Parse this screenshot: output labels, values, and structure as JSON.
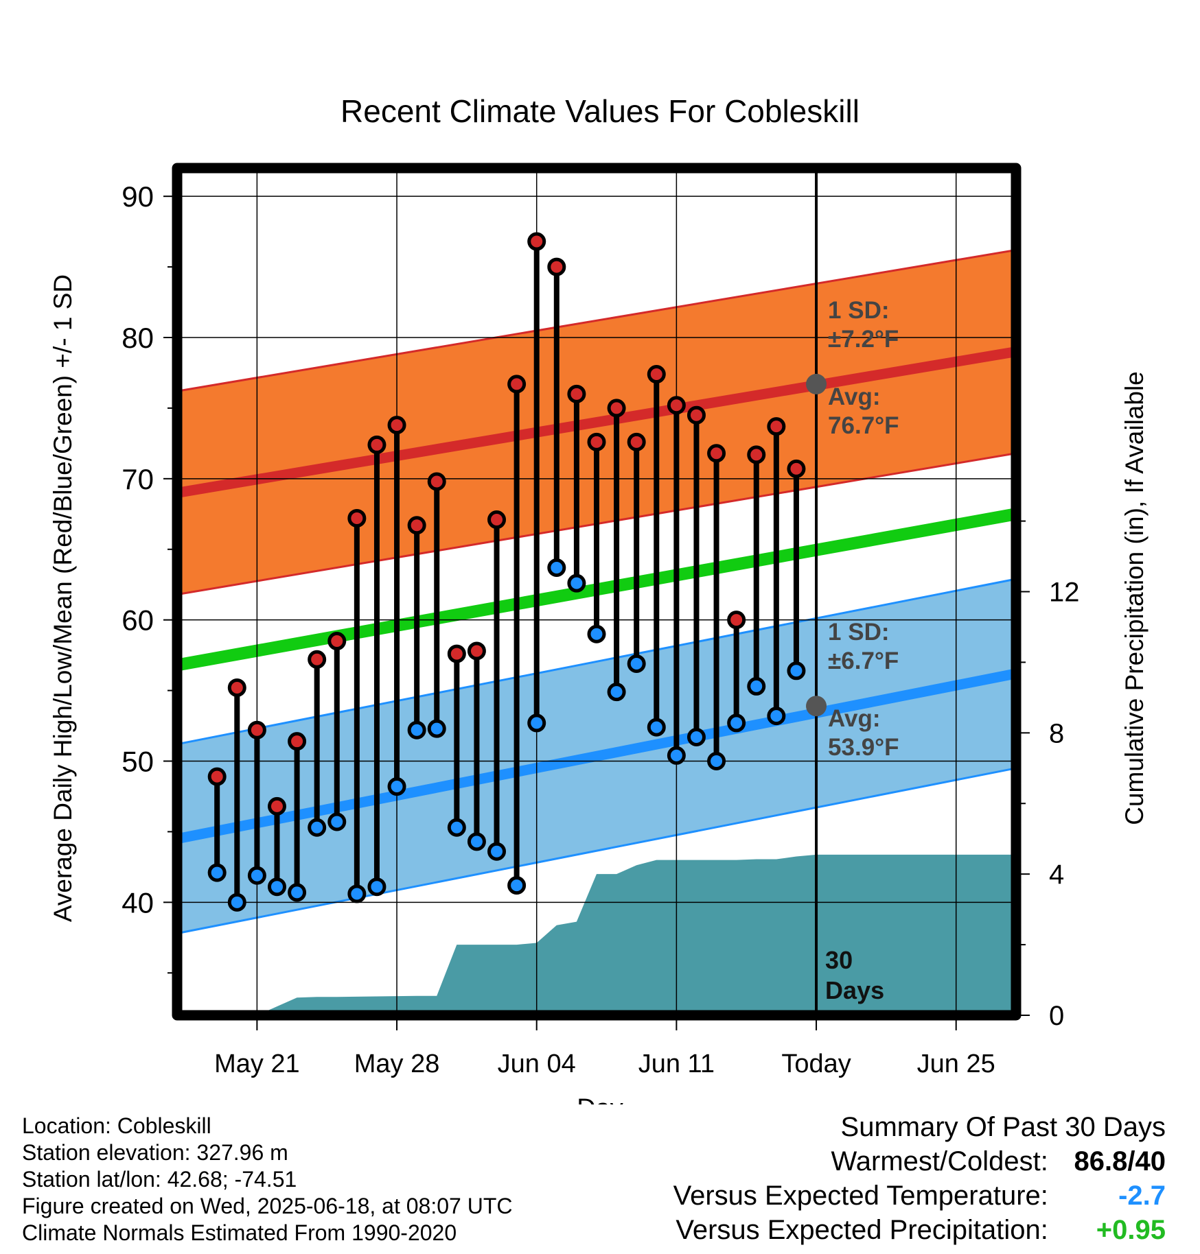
{
  "chart_data": {
    "type": "line",
    "title": "Recent Climate Values For Cobleskill",
    "xlabel": "Day",
    "ylabel": "Average Daily High/Low/Mean (Red/Blue/Green) +/- 1 SD",
    "y2label": "Cumulative Precipitation (in), If Available",
    "xlim": [
      "2025-05-17",
      "2025-06-28"
    ],
    "ylim": [
      32,
      92
    ],
    "y2lim": [
      0,
      24
    ],
    "yticks": [
      40,
      50,
      60,
      70,
      80,
      90
    ],
    "y2ticks": [
      0,
      4,
      8,
      12
    ],
    "xticks": [
      {
        "date": "2025-05-21",
        "label": "May 21"
      },
      {
        "date": "2025-05-28",
        "label": "May 28"
      },
      {
        "date": "2025-06-04",
        "label": "Jun 04"
      },
      {
        "date": "2025-06-11",
        "label": "Jun 11"
      },
      {
        "date": "2025-06-18",
        "label": "Today"
      },
      {
        "date": "2025-06-25",
        "label": "Jun 25"
      }
    ],
    "grid": true,
    "today": "2025-06-18",
    "period_label": [
      "30",
      "Days"
    ],
    "daily": {
      "dates": [
        "2025-05-19",
        "2025-05-20",
        "2025-05-21",
        "2025-05-22",
        "2025-05-23",
        "2025-05-24",
        "2025-05-25",
        "2025-05-26",
        "2025-05-27",
        "2025-05-28",
        "2025-05-29",
        "2025-05-30",
        "2025-05-31",
        "2025-06-01",
        "2025-06-02",
        "2025-06-03",
        "2025-06-04",
        "2025-06-05",
        "2025-06-06",
        "2025-06-07",
        "2025-06-08",
        "2025-06-09",
        "2025-06-10",
        "2025-06-11",
        "2025-06-12",
        "2025-06-13",
        "2025-06-14",
        "2025-06-15",
        "2025-06-16",
        "2025-06-17"
      ],
      "high": [
        48.9,
        55.2,
        52.2,
        46.8,
        51.4,
        57.2,
        58.5,
        67.2,
        72.4,
        73.8,
        66.7,
        69.8,
        57.6,
        57.8,
        67.1,
        76.7,
        86.8,
        85.0,
        76.0,
        72.6,
        75.0,
        72.6,
        77.4,
        75.2,
        74.5,
        71.8,
        60.0,
        71.7,
        73.7,
        70.7
      ],
      "low": [
        42.1,
        40.0,
        41.9,
        41.1,
        40.7,
        45.3,
        45.7,
        40.6,
        41.1,
        48.2,
        52.2,
        52.3,
        45.3,
        44.3,
        43.6,
        41.2,
        52.7,
        63.7,
        62.6,
        59.0,
        54.9,
        56.9,
        52.4,
        50.4,
        51.7,
        50.0,
        52.7,
        55.3,
        53.2,
        56.4
      ],
      "high_color": "#d42a2a",
      "low_color": "#1e90ff"
    },
    "normals": {
      "dates": [
        "2025-05-17",
        "2025-06-28"
      ],
      "high_avg": [
        69.0,
        79.0
      ],
      "high_sd": 7.2,
      "low_avg": [
        44.5,
        56.2
      ],
      "low_sd": 6.7,
      "mean_avg": [
        56.8,
        67.5
      ]
    },
    "precipitation": {
      "dates": [
        "2025-05-18",
        "2025-05-19",
        "2025-05-20",
        "2025-05-21",
        "2025-05-22",
        "2025-05-23",
        "2025-05-24",
        "2025-05-25",
        "2025-05-29",
        "2025-05-30",
        "2025-05-31",
        "2025-06-01",
        "2025-06-02",
        "2025-06-03",
        "2025-06-04",
        "2025-06-05",
        "2025-06-06",
        "2025-06-07",
        "2025-06-08",
        "2025-06-09",
        "2025-06-10",
        "2025-06-11",
        "2025-06-12",
        "2025-06-13",
        "2025-06-14",
        "2025-06-15",
        "2025-06-16",
        "2025-06-17",
        "2025-06-18",
        "2025-06-28"
      ],
      "values": [
        0,
        0,
        0,
        0,
        0.25,
        0.5,
        0.52,
        0.52,
        0.55,
        0.55,
        2.0,
        2.0,
        2.0,
        2.0,
        2.05,
        2.55,
        2.65,
        4.0,
        4.0,
        4.25,
        4.4,
        4.4,
        4.4,
        4.4,
        4.4,
        4.42,
        4.42,
        4.5,
        4.55,
        4.55
      ],
      "color": "#4a9ba5"
    },
    "annotations": {
      "high_sd_label": "1 SD:",
      "high_sd_value": "±7.2°F",
      "high_avg_label": "Avg:",
      "high_avg_value": "76.7°F",
      "low_sd_label": "1 SD:",
      "low_sd_value": "±6.7°F",
      "low_avg_label": "Avg:",
      "low_avg_value": "53.9°F",
      "today_high_avg": 76.7,
      "today_low_avg": 53.9
    },
    "colors": {
      "high_band": "#f47a2e",
      "high_line": "#d42a2a",
      "low_band": "#82c0e6",
      "low_line": "#1e90ff",
      "mean_line": "#11cc11"
    }
  },
  "footer": {
    "location": "Location: Cobleskill",
    "elevation": "Station elevation: 327.96 m",
    "latlon": "Station lat/lon: 42.68; -74.51",
    "created": "Figure created on Wed, 2025-06-18, at 08:07 UTC",
    "normals": "Climate Normals Estimated From 1990-2020"
  },
  "summary": {
    "title": "Summary Of Past 30 Days",
    "warmest_label": "Warmest/Coldest:",
    "warmest_value": "86.8/40",
    "temp_label": "Versus Expected Temperature:",
    "temp_value": "-2.7",
    "precip_label": "Versus Expected Precipitation:",
    "precip_value": "+0.95"
  }
}
